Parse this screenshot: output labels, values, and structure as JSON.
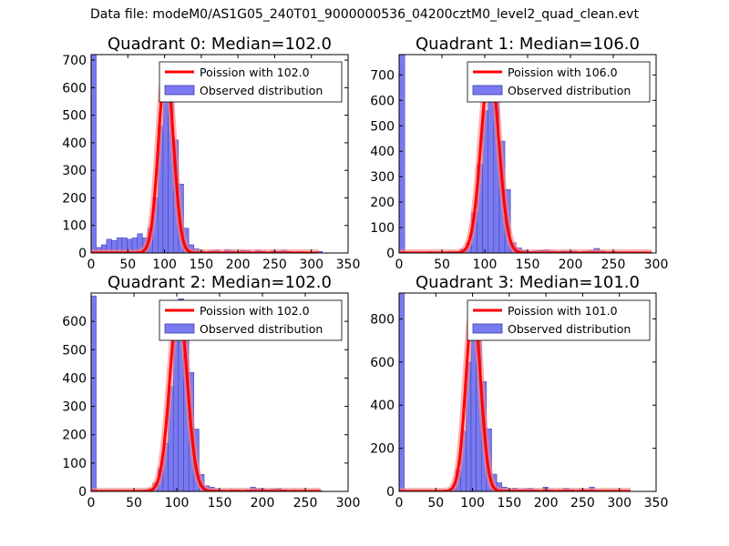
{
  "figure": {
    "suptitle": "Data file: modeM0/AS1G05_240T01_9000000536_04200cztM0_level2_quad_clean.evt"
  },
  "colors": {
    "bar_fill": "#7a7af0",
    "bar_edge": "#3a3ab0",
    "poisson_line": "#ff0000",
    "poisson_glow": "#ff8080"
  },
  "chart_data": [
    {
      "type": "bar",
      "title": "Quadrant 0: Median=102.0",
      "legend": {
        "line_label": "Poission with 102.0",
        "bar_label": "Observed distribution",
        "placement": "top-right"
      },
      "xlim": [
        0,
        350
      ],
      "ylim": [
        0,
        720
      ],
      "xticks": [
        0,
        50,
        100,
        150,
        200,
        250,
        300,
        350
      ],
      "yticks": [
        0,
        100,
        200,
        300,
        400,
        500,
        600,
        700
      ],
      "bin_width": 7,
      "bins": [
        [
          0,
          720
        ],
        [
          7,
          20
        ],
        [
          14,
          30
        ],
        [
          21,
          50
        ],
        [
          28,
          45
        ],
        [
          35,
          55
        ],
        [
          42,
          55
        ],
        [
          49,
          50
        ],
        [
          56,
          55
        ],
        [
          63,
          70
        ],
        [
          70,
          55
        ],
        [
          77,
          90
        ],
        [
          84,
          200
        ],
        [
          91,
          460
        ],
        [
          98,
          620
        ],
        [
          105,
          560
        ],
        [
          112,
          410
        ],
        [
          119,
          250
        ],
        [
          126,
          90
        ],
        [
          133,
          30
        ],
        [
          140,
          15
        ],
        [
          147,
          8
        ],
        [
          154,
          5
        ],
        [
          161,
          8
        ],
        [
          168,
          10
        ],
        [
          175,
          5
        ],
        [
          182,
          12
        ],
        [
          189,
          8
        ],
        [
          196,
          5
        ],
        [
          203,
          10
        ],
        [
          210,
          8
        ],
        [
          217,
          5
        ],
        [
          224,
          10
        ],
        [
          231,
          6
        ],
        [
          238,
          4
        ],
        [
          245,
          8
        ],
        [
          252,
          6
        ],
        [
          259,
          10
        ],
        [
          266,
          6
        ],
        [
          273,
          4
        ],
        [
          280,
          5
        ],
        [
          287,
          4
        ],
        [
          294,
          3
        ],
        [
          301,
          4
        ],
        [
          308,
          6
        ]
      ],
      "poisson": {
        "mean": 102.0,
        "peak": 680,
        "x_range": [
          0,
          310
        ]
      }
    },
    {
      "type": "bar",
      "title": "Quadrant 1: Median=106.0",
      "legend": {
        "line_label": "Poission with 106.0",
        "bar_label": "Observed distribution",
        "placement": "top-right"
      },
      "xlim": [
        0,
        300
      ],
      "ylim": [
        0,
        780
      ],
      "xticks": [
        0,
        50,
        100,
        150,
        200,
        250,
        300
      ],
      "yticks": [
        0,
        100,
        200,
        300,
        400,
        500,
        600,
        700
      ],
      "bin_width": 6.5,
      "bins": [
        [
          0,
          780
        ],
        [
          6.5,
          5
        ],
        [
          13,
          4
        ],
        [
          19.5,
          5
        ],
        [
          26,
          4
        ],
        [
          32.5,
          6
        ],
        [
          39,
          5
        ],
        [
          45.5,
          4
        ],
        [
          52,
          5
        ],
        [
          58.5,
          6
        ],
        [
          65,
          5
        ],
        [
          71.5,
          15
        ],
        [
          78,
          40
        ],
        [
          84.5,
          160
        ],
        [
          91,
          350
        ],
        [
          97.5,
          560
        ],
        [
          104,
          720
        ],
        [
          110.5,
          630
        ],
        [
          117,
          440
        ],
        [
          123.5,
          250
        ],
        [
          130,
          40
        ],
        [
          136.5,
          20
        ],
        [
          143,
          10
        ],
        [
          149.5,
          6
        ],
        [
          156,
          8
        ],
        [
          162.5,
          10
        ],
        [
          169,
          12
        ],
        [
          175.5,
          8
        ],
        [
          182,
          6
        ],
        [
          188.5,
          8
        ],
        [
          195,
          6
        ],
        [
          201.5,
          8
        ],
        [
          208,
          5
        ],
        [
          214.5,
          7
        ],
        [
          221,
          10
        ],
        [
          227.5,
          18
        ],
        [
          234,
          8
        ],
        [
          240.5,
          5
        ],
        [
          247,
          6
        ],
        [
          253.5,
          4
        ],
        [
          260,
          5
        ],
        [
          266.5,
          3
        ],
        [
          273,
          4
        ],
        [
          279.5,
          3
        ],
        [
          286,
          2
        ]
      ],
      "poisson": {
        "mean": 106.0,
        "peak": 740,
        "x_range": [
          0,
          295
        ]
      }
    },
    {
      "type": "bar",
      "title": "Quadrant 2: Median=102.0",
      "legend": {
        "line_label": "Poission with 102.0",
        "bar_label": "Observed distribution",
        "placement": "top-right"
      },
      "xlim": [
        0,
        300
      ],
      "ylim": [
        0,
        700
      ],
      "xticks": [
        0,
        50,
        100,
        150,
        200,
        250,
        300
      ],
      "yticks": [
        0,
        100,
        200,
        300,
        400,
        500,
        600
      ],
      "bin_width": 6,
      "bins": [
        [
          0,
          690
        ],
        [
          6,
          3
        ],
        [
          12,
          2
        ],
        [
          18,
          3
        ],
        [
          24,
          2
        ],
        [
          30,
          3
        ],
        [
          36,
          2
        ],
        [
          42,
          3
        ],
        [
          48,
          2
        ],
        [
          54,
          3
        ],
        [
          60,
          5
        ],
        [
          66,
          10
        ],
        [
          72,
          30
        ],
        [
          78,
          80
        ],
        [
          84,
          170
        ],
        [
          90,
          370
        ],
        [
          96,
          560
        ],
        [
          102,
          680
        ],
        [
          108,
          570
        ],
        [
          114,
          420
        ],
        [
          120,
          220
        ],
        [
          126,
          60
        ],
        [
          132,
          20
        ],
        [
          138,
          15
        ],
        [
          144,
          8
        ],
        [
          150,
          5
        ],
        [
          156,
          4
        ],
        [
          162,
          6
        ],
        [
          168,
          5
        ],
        [
          174,
          4
        ],
        [
          180,
          6
        ],
        [
          186,
          15
        ],
        [
          192,
          10
        ],
        [
          198,
          8
        ],
        [
          204,
          6
        ],
        [
          210,
          8
        ],
        [
          216,
          10
        ],
        [
          222,
          6
        ],
        [
          228,
          4
        ],
        [
          234,
          5
        ],
        [
          240,
          4
        ],
        [
          246,
          3
        ],
        [
          252,
          4
        ],
        [
          258,
          3
        ],
        [
          264,
          2
        ]
      ],
      "poisson": {
        "mean": 102.0,
        "peak": 660,
        "x_range": [
          0,
          268
        ]
      }
    },
    {
      "type": "bar",
      "title": "Quadrant 3: Median=101.0",
      "legend": {
        "line_label": "Poission with 101.0",
        "bar_label": "Observed distribution",
        "placement": "top-right"
      },
      "xlim": [
        0,
        350
      ],
      "ylim": [
        0,
        920
      ],
      "xticks": [
        0,
        50,
        100,
        150,
        200,
        250,
        300,
        350
      ],
      "yticks": [
        0,
        200,
        400,
        600,
        800
      ],
      "bin_width": 7,
      "bins": [
        [
          0,
          920
        ],
        [
          7,
          4
        ],
        [
          14,
          3
        ],
        [
          21,
          4
        ],
        [
          28,
          3
        ],
        [
          35,
          4
        ],
        [
          42,
          3
        ],
        [
          49,
          4
        ],
        [
          56,
          3
        ],
        [
          63,
          5
        ],
        [
          70,
          15
        ],
        [
          77,
          100
        ],
        [
          84,
          280
        ],
        [
          91,
          600
        ],
        [
          98,
          800
        ],
        [
          105,
          760
        ],
        [
          112,
          510
        ],
        [
          119,
          290
        ],
        [
          126,
          80
        ],
        [
          133,
          40
        ],
        [
          140,
          20
        ],
        [
          147,
          10
        ],
        [
          154,
          15
        ],
        [
          161,
          8
        ],
        [
          168,
          10
        ],
        [
          175,
          15
        ],
        [
          182,
          8
        ],
        [
          189,
          6
        ],
        [
          196,
          20
        ],
        [
          203,
          8
        ],
        [
          210,
          5
        ],
        [
          217,
          6
        ],
        [
          224,
          15
        ],
        [
          231,
          8
        ],
        [
          238,
          5
        ],
        [
          245,
          10
        ],
        [
          252,
          8
        ],
        [
          259,
          20
        ],
        [
          266,
          6
        ],
        [
          273,
          5
        ],
        [
          280,
          4
        ],
        [
          287,
          3
        ],
        [
          294,
          4
        ],
        [
          301,
          3
        ],
        [
          308,
          2
        ]
      ],
      "poisson": {
        "mean": 101.0,
        "peak": 860,
        "x_range": [
          0,
          315
        ]
      }
    }
  ]
}
